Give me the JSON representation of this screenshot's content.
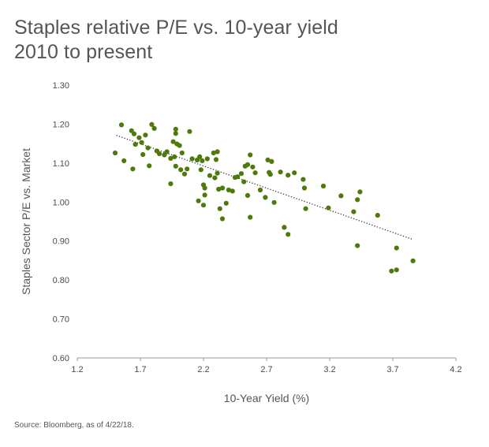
{
  "title_line1": "Staples relative P/E vs. 10-year yield",
  "title_line2": "2010 to present",
  "source": "Source: Bloomberg, as of 4/22/18.",
  "colors": {
    "point": "#4d7a0a",
    "trend": "#3a3a4a",
    "text": "#4a4a4a"
  },
  "chart_data": {
    "type": "scatter",
    "title": "Staples relative P/E vs. 10-year yield 2010 to present",
    "xlabel": "10-Year Yield (%)",
    "ylabel": "Staples Sector P/E vs. Market",
    "xlim": [
      1.2,
      4.2
    ],
    "ylim": [
      0.6,
      1.3
    ],
    "xticks": [
      1.2,
      1.7,
      2.2,
      2.7,
      3.2,
      3.7,
      4.2
    ],
    "xtick_labels": [
      "1.2",
      "1.7",
      "2.2",
      "2.7",
      "3.2",
      "3.7",
      "4.2"
    ],
    "yticks": [
      0.6,
      0.7,
      0.8,
      0.9,
      1.0,
      1.1,
      1.2,
      1.3
    ],
    "ytick_labels": [
      "0.60",
      "0.70",
      "0.80",
      "0.90",
      "1.00",
      "1.10",
      "1.20",
      "1.30"
    ],
    "grid": false,
    "trendline": {
      "style": "dotted",
      "x": [
        1.51,
        3.86
      ],
      "y": [
        1.171,
        0.904
      ]
    },
    "points": [
      [
        1.55,
        1.198
      ],
      [
        1.5,
        1.126
      ],
      [
        1.57,
        1.106
      ],
      [
        1.63,
        1.183
      ],
      [
        1.65,
        1.175
      ],
      [
        1.69,
        1.165
      ],
      [
        1.74,
        1.172
      ],
      [
        1.66,
        1.148
      ],
      [
        1.71,
        1.153
      ],
      [
        1.76,
        1.139
      ],
      [
        1.79,
        1.199
      ],
      [
        1.81,
        1.189
      ],
      [
        1.83,
        1.131
      ],
      [
        1.85,
        1.124
      ],
      [
        1.72,
        1.122
      ],
      [
        1.64,
        1.085
      ],
      [
        1.77,
        1.093
      ],
      [
        1.89,
        1.121
      ],
      [
        1.91,
        1.129
      ],
      [
        1.94,
        1.112
      ],
      [
        1.96,
        1.155
      ],
      [
        1.98,
        1.187
      ],
      [
        1.98,
        1.176
      ],
      [
        1.99,
        1.149
      ],
      [
        2.01,
        1.145
      ],
      [
        1.97,
        1.116
      ],
      [
        1.98,
        1.092
      ],
      [
        2.02,
        1.083
      ],
      [
        2.05,
        1.072
      ],
      [
        2.09,
        1.181
      ],
      [
        2.03,
        1.126
      ],
      [
        2.07,
        1.085
      ],
      [
        1.94,
        1.047
      ],
      [
        2.11,
        1.111
      ],
      [
        2.15,
        1.108
      ],
      [
        2.17,
        1.116
      ],
      [
        2.19,
        1.106
      ],
      [
        2.23,
        1.111
      ],
      [
        2.25,
        1.068
      ],
      [
        2.18,
        1.083
      ],
      [
        2.2,
        1.044
      ],
      [
        2.21,
        1.036
      ],
      [
        2.21,
        1.018
      ],
      [
        2.2,
        0.992
      ],
      [
        2.16,
        1.003
      ],
      [
        2.28,
        1.126
      ],
      [
        2.31,
        1.129
      ],
      [
        2.3,
        1.109
      ],
      [
        2.29,
        1.062
      ],
      [
        2.31,
        1.074
      ],
      [
        2.32,
        1.033
      ],
      [
        2.35,
        1.036
      ],
      [
        2.33,
        0.983
      ],
      [
        2.35,
        0.957
      ],
      [
        2.38,
        0.997
      ],
      [
        2.4,
        1.031
      ],
      [
        2.43,
        1.028
      ],
      [
        2.45,
        1.063
      ],
      [
        2.47,
        1.065
      ],
      [
        2.5,
        1.073
      ],
      [
        2.52,
        1.052
      ],
      [
        2.53,
        1.092
      ],
      [
        2.55,
        1.096
      ],
      [
        2.57,
        1.121
      ],
      [
        2.59,
        1.09
      ],
      [
        2.55,
        1.017
      ],
      [
        2.57,
        0.961
      ],
      [
        2.61,
        1.075
      ],
      [
        2.65,
        1.031
      ],
      [
        2.69,
        1.012
      ],
      [
        2.71,
        1.108
      ],
      [
        2.72,
        1.076
      ],
      [
        2.73,
        1.071
      ],
      [
        2.74,
        1.104
      ],
      [
        2.76,
        0.999
      ],
      [
        2.81,
        1.077
      ],
      [
        2.84,
        0.935
      ],
      [
        2.87,
        0.917
      ],
      [
        2.87,
        1.069
      ],
      [
        2.92,
        1.075
      ],
      [
        2.99,
        1.058
      ],
      [
        3.0,
        1.036
      ],
      [
        3.01,
        0.983
      ],
      [
        3.15,
        1.041
      ],
      [
        3.19,
        0.985
      ],
      [
        3.29,
        1.016
      ],
      [
        3.39,
        0.975
      ],
      [
        3.42,
        1.006
      ],
      [
        3.44,
        1.026
      ],
      [
        3.42,
        0.888
      ],
      [
        3.58,
        0.966
      ],
      [
        3.69,
        0.823
      ],
      [
        3.73,
        0.826
      ],
      [
        3.73,
        0.882
      ],
      [
        3.86,
        0.849
      ]
    ]
  }
}
